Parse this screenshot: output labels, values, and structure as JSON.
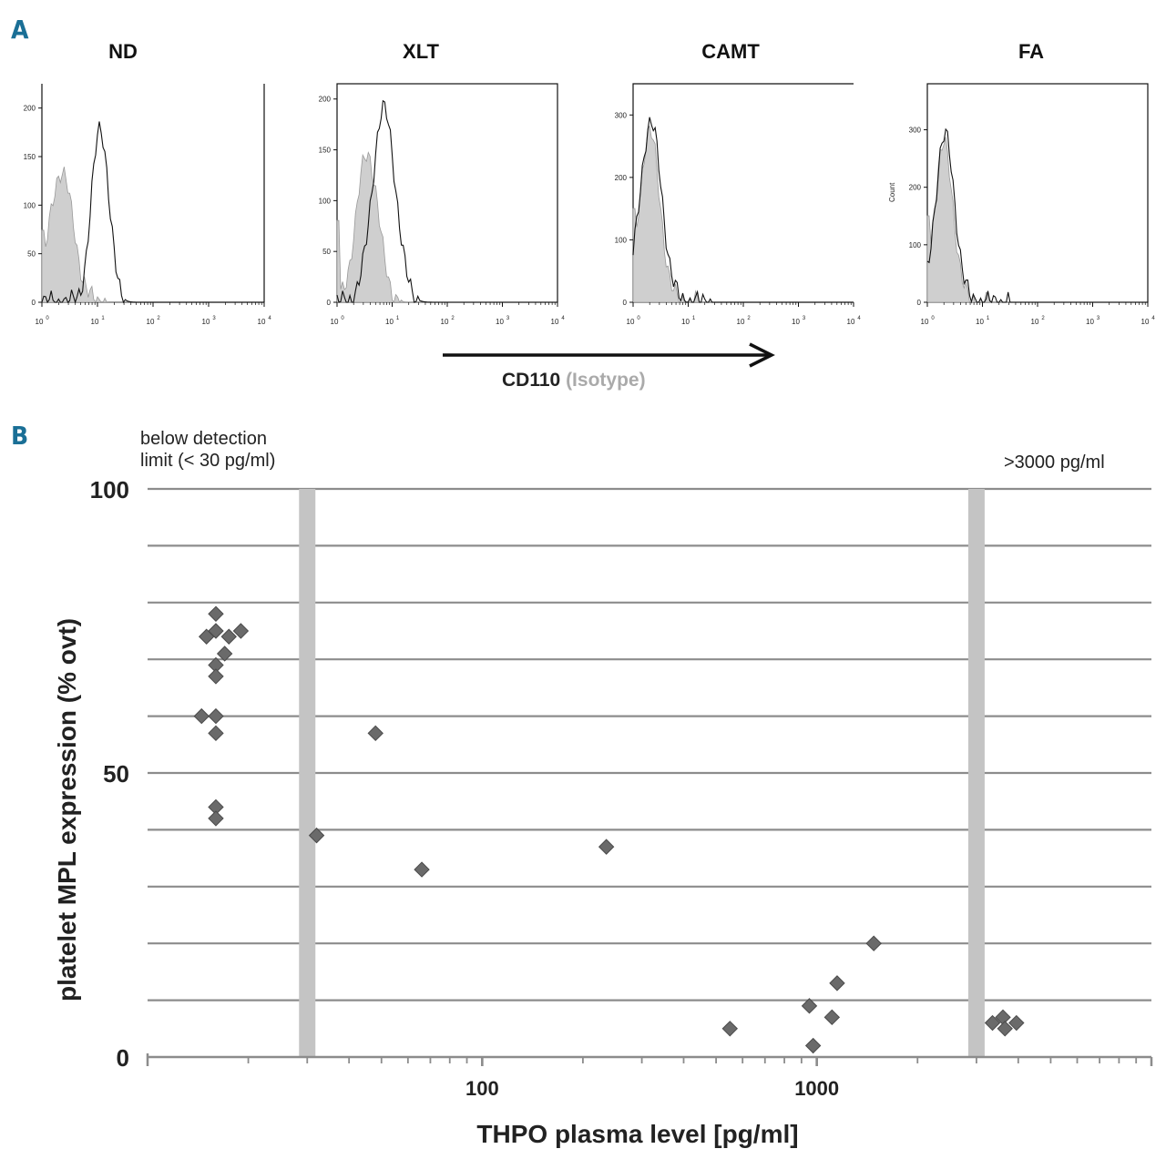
{
  "panels": {
    "a_label": "A",
    "b_label": "B"
  },
  "histograms": [
    {
      "title": "ND",
      "y_ticks": [
        "0",
        "50",
        "100",
        "150",
        "200"
      ],
      "y_max": 225,
      "count_label": ""
    },
    {
      "title": "XLT",
      "y_ticks": [
        "0",
        "50",
        "100",
        "150",
        "200"
      ],
      "y_max": 215,
      "count_label": ""
    },
    {
      "title": "CAMT",
      "y_ticks": [
        "0",
        "100",
        "200",
        "300"
      ],
      "y_max": 350,
      "count_label": ""
    },
    {
      "title": "FA",
      "y_ticks": [
        "0",
        "100",
        "200",
        "300"
      ],
      "y_max": 380,
      "count_label": "Count"
    }
  ],
  "hist_x_ticks": [
    "10",
    "10",
    "10",
    "10",
    "10"
  ],
  "hist_x_exponents": [
    "0",
    "1",
    "2",
    "3",
    "4"
  ],
  "cd110_axis": {
    "label": "CD110",
    "isotype": "(Isotype)"
  },
  "chart_data": {
    "type": "scatter",
    "title": "",
    "xlabel": "THPO plasma level [pg/ml]",
    "ylabel": "platelet MPL expression (% ovt)",
    "x_scale": "log",
    "xlim": [
      10,
      10000
    ],
    "ylim": [
      0,
      100
    ],
    "x_tick_labels": [
      "100",
      "1000"
    ],
    "y_tick_labels": [
      "0",
      "50",
      "100"
    ],
    "annotations": {
      "below_detection_line1": "below detection",
      "below_detection_line2": "limit (< 30 pg/ml)",
      "above": ">3000 pg/ml"
    },
    "band_markers": [
      30,
      3000
    ],
    "points": [
      {
        "x": 16,
        "y": 78
      },
      {
        "x": 15,
        "y": 74
      },
      {
        "x": 16,
        "y": 75
      },
      {
        "x": 17.5,
        "y": 74
      },
      {
        "x": 19,
        "y": 75
      },
      {
        "x": 17,
        "y": 71
      },
      {
        "x": 16,
        "y": 69
      },
      {
        "x": 16,
        "y": 67
      },
      {
        "x": 14.5,
        "y": 60
      },
      {
        "x": 16,
        "y": 60
      },
      {
        "x": 16,
        "y": 57
      },
      {
        "x": 16,
        "y": 44
      },
      {
        "x": 16,
        "y": 42
      },
      {
        "x": 32,
        "y": 39
      },
      {
        "x": 48,
        "y": 57
      },
      {
        "x": 66,
        "y": 33
      },
      {
        "x": 235,
        "y": 37
      },
      {
        "x": 550,
        "y": 5
      },
      {
        "x": 950,
        "y": 9
      },
      {
        "x": 975,
        "y": 2
      },
      {
        "x": 1110,
        "y": 7
      },
      {
        "x": 1150,
        "y": 13
      },
      {
        "x": 1480,
        "y": 20
      },
      {
        "x": 3350,
        "y": 6
      },
      {
        "x": 3600,
        "y": 7
      },
      {
        "x": 3650,
        "y": 5
      },
      {
        "x": 3950,
        "y": 6
      }
    ]
  }
}
